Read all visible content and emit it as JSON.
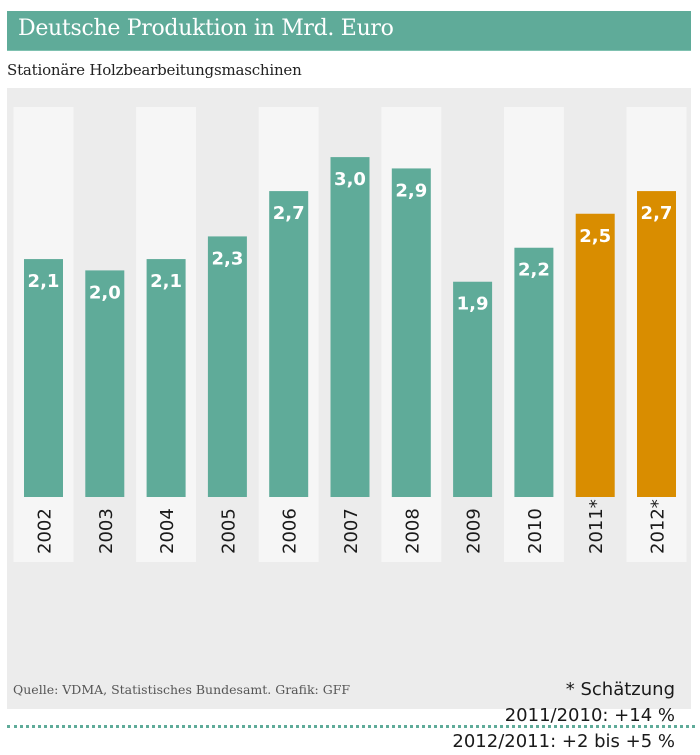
{
  "header": {
    "title": "Deutsche Produktion in Mrd. Euro",
    "subtitle": "Stationäre Holzbearbeitungsmaschinen"
  },
  "colors": {
    "actual": "#5fab99",
    "estimate": "#d98d00",
    "panel": "#ececec",
    "stripe": "#f6f6f6"
  },
  "chart_data": {
    "type": "bar",
    "title": "Deutsche Produktion in Mrd. Euro",
    "subtitle": "Stationäre Holzbearbeitungsmaschinen",
    "xlabel": "",
    "ylabel": "Mrd. Euro",
    "ylim": [
      0,
      3.0
    ],
    "grid": false,
    "categories": [
      "2002",
      "2003",
      "2004",
      "2005",
      "2006",
      "2007",
      "2008",
      "2009",
      "2010",
      "2011*",
      "2012*"
    ],
    "values": [
      2.1,
      2.0,
      2.1,
      2.3,
      2.7,
      3.0,
      2.9,
      1.9,
      2.2,
      2.5,
      2.7
    ],
    "value_labels": [
      "2,1",
      "2,0",
      "2,1",
      "2,3",
      "2,7",
      "3,0",
      "2,9",
      "1,9",
      "2,2",
      "2,5",
      "2,7"
    ],
    "estimate": [
      false,
      false,
      false,
      false,
      false,
      false,
      false,
      false,
      false,
      true,
      true
    ],
    "series": [
      {
        "name": "Produktion",
        "values": [
          2.1,
          2.0,
          2.1,
          2.3,
          2.7,
          3.0,
          2.9,
          1.9,
          2.2,
          null,
          null
        ]
      },
      {
        "name": "Schätzung",
        "values": [
          null,
          null,
          null,
          null,
          null,
          null,
          null,
          null,
          null,
          2.5,
          2.7
        ]
      }
    ]
  },
  "notes": {
    "estimate": "* Schätzung",
    "growth_2011": "2011/2010: +14 %",
    "growth_2012": "2012/2011: +2 bis +5 %"
  },
  "source": "Quelle: VDMA, Statistisches Bundesamt. Grafik: GFF"
}
